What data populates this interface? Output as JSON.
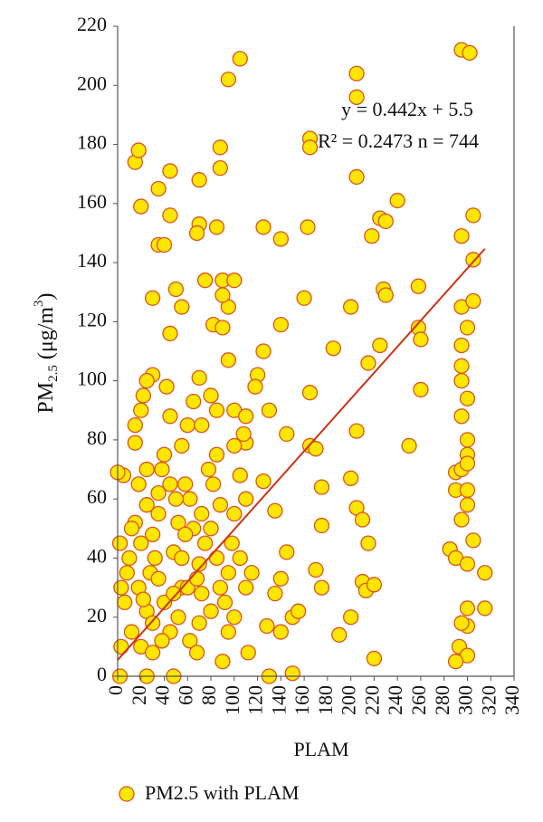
{
  "chart_data": {
    "type": "scatter",
    "x_label": "PLAM",
    "y_label": {
      "main": "PM",
      "sub": "2.5",
      "unit": " (μg/m",
      "sup": "3",
      "close": ")"
    },
    "annotations": [
      "y = 0.442x + 5.5",
      "R² = 0.2473 n = 744"
    ],
    "xlim": [
      0,
      340
    ],
    "xticks": [
      0,
      20,
      40,
      60,
      80,
      100,
      120,
      140,
      160,
      180,
      200,
      220,
      240,
      260,
      280,
      300,
      320,
      340
    ],
    "ylim": [
      0,
      220
    ],
    "yticks": [
      0,
      20,
      40,
      60,
      80,
      100,
      120,
      140,
      160,
      180,
      200,
      220
    ],
    "grid": false,
    "legend": "bottom",
    "series": [
      {
        "name": "PM2.5 with PLAM",
        "color": "#ffe600",
        "edge_color": "#d9541e",
        "x": [
          95,
          105,
          205,
          205,
          295,
          302,
          165,
          165,
          15,
          18,
          20,
          45,
          35,
          70,
          88,
          88,
          70,
          68,
          85,
          125,
          140,
          163,
          205,
          240,
          225,
          230,
          218,
          295,
          305,
          305,
          35,
          40,
          45,
          75,
          90,
          100,
          95,
          90,
          30,
          50,
          55,
          160,
          228,
          230,
          258,
          200,
          295,
          305,
          82,
          90,
          140,
          258,
          260,
          300,
          295,
          225,
          185,
          125,
          45,
          30,
          25,
          95,
          120,
          215,
          295,
          295,
          165,
          260,
          300,
          295,
          300,
          205,
          250,
          165,
          170,
          300,
          130,
          145,
          110,
          125,
          200,
          290,
          295,
          300,
          290,
          300,
          205,
          210,
          135,
          175,
          175,
          300,
          215,
          295,
          285,
          290,
          305,
          300,
          315,
          145,
          140,
          170,
          175,
          210,
          213,
          220,
          200,
          190,
          220,
          130,
          150,
          135,
          150,
          128,
          140,
          155,
          300,
          315,
          300,
          295,
          293,
          300,
          290,
          2,
          3,
          3,
          2,
          8,
          12,
          10,
          15,
          15,
          15,
          18,
          20,
          22,
          25,
          25,
          20,
          18,
          25,
          20,
          25,
          30,
          30,
          28,
          30,
          35,
          35,
          38,
          40,
          45,
          42,
          45,
          48,
          40,
          45,
          48,
          52,
          55,
          55,
          52,
          58,
          55,
          60,
          65,
          70,
          62,
          65,
          60,
          62,
          68,
          70,
          72,
          70,
          75,
          72,
          78,
          80,
          85,
          85,
          82,
          80,
          85,
          88,
          80,
          90,
          95,
          92,
          95,
          98,
          100,
          105,
          100,
          100,
          110,
          118,
          110,
          105,
          110,
          100,
          112,
          115,
          5,
          12,
          32,
          38,
          50,
          68,
          88,
          6,
          22,
          35,
          48,
          58,
          72,
          108,
          0
        ],
        "values": [
          202,
          209,
          204,
          196,
          212,
          211,
          182,
          179,
          174,
          178,
          159,
          171,
          165,
          168,
          179,
          172,
          153,
          150,
          152,
          152,
          148,
          152,
          169,
          161,
          155,
          154,
          149,
          149,
          156,
          141,
          146,
          146,
          156,
          134,
          134,
          134,
          125,
          129,
          128,
          131,
          125,
          128,
          131,
          129,
          132,
          125,
          125,
          127,
          119,
          118,
          119,
          118,
          114,
          118,
          112,
          112,
          111,
          110,
          116,
          102,
          100,
          107,
          102,
          106,
          105,
          100,
          96,
          97,
          94,
          88,
          80,
          83,
          78,
          78,
          77,
          75,
          90,
          82,
          79,
          66,
          67,
          69,
          70,
          72,
          63,
          63,
          57,
          53,
          56,
          64,
          51,
          58,
          45,
          53,
          43,
          40,
          46,
          38,
          35,
          42,
          33,
          36,
          30,
          32,
          29,
          31,
          20,
          14,
          6,
          0,
          1,
          28,
          20,
          17,
          15,
          22,
          23,
          23,
          17,
          18,
          10,
          7,
          5,
          45,
          30,
          10,
          0,
          35,
          15,
          40,
          52,
          85,
          79,
          65,
          90,
          95,
          70,
          58,
          45,
          30,
          22,
          10,
          0,
          8,
          18,
          35,
          48,
          55,
          62,
          70,
          75,
          88,
          98,
          65,
          42,
          25,
          15,
          0,
          20,
          30,
          40,
          52,
          65,
          78,
          85,
          93,
          101,
          60,
          50,
          30,
          12,
          8,
          18,
          28,
          38,
          45,
          55,
          70,
          95,
          90,
          75,
          65,
          50,
          40,
          30,
          22,
          5,
          15,
          25,
          35,
          45,
          55,
          68,
          78,
          90,
          88,
          98,
          60,
          40,
          30,
          20,
          8,
          35,
          68,
          50,
          40,
          12,
          60,
          33,
          58,
          25,
          26,
          33,
          28,
          48,
          85,
          82,
          69
        ]
      }
    ],
    "trendline": {
      "color": "#cc3311",
      "x": [
        0,
        315
      ],
      "y": [
        5.5,
        144.7
      ]
    }
  }
}
